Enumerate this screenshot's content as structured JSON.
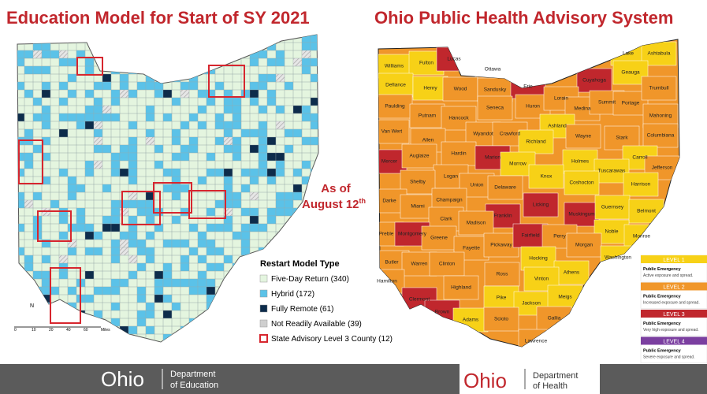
{
  "left": {
    "title": "Education Model for Start of SY 2021",
    "legend": {
      "title": "Restart Model Type",
      "items": [
        {
          "label": "Five-Day Return (340)",
          "color": "#e4f5df",
          "swatch": "fill"
        },
        {
          "label": "Hybrid (172)",
          "color": "#5bc2e8",
          "swatch": "fill"
        },
        {
          "label": "Fully Remote (61)",
          "color": "#0d2c4b",
          "swatch": "fill"
        },
        {
          "label": "Not Readily Available (39)",
          "color": "#cfcfcf",
          "swatch": "fill"
        },
        {
          "label": "State Advisory Level 3 County (12)",
          "color": "#d7262e",
          "swatch": "outline"
        }
      ]
    },
    "scale": [
      "0",
      "10",
      "20",
      "40",
      "60",
      "Miles"
    ],
    "north": "N"
  },
  "as_of": {
    "line1": "As of",
    "date": "August 12",
    "suffix": "th"
  },
  "right": {
    "title": "Ohio Public Health Advisory System",
    "counties": [
      {
        "name": "Williams",
        "color": "#f7d117"
      },
      {
        "name": "Fulton",
        "color": "#f7d117"
      },
      {
        "name": "Lucas",
        "color": "#c0272d"
      },
      {
        "name": "Ottawa",
        "color": "#f0962a"
      },
      {
        "name": "Defiance",
        "color": "#f7d117"
      },
      {
        "name": "Henry",
        "color": "#f7d117"
      },
      {
        "name": "Wood",
        "color": "#f0962a"
      },
      {
        "name": "Sandusky",
        "color": "#f0962a"
      },
      {
        "name": "Erie",
        "color": "#c0272d"
      },
      {
        "name": "Cuyahoga",
        "color": "#c0272d"
      },
      {
        "name": "Lake",
        "color": "#f7d117"
      },
      {
        "name": "Ashtabula",
        "color": "#f7d117"
      },
      {
        "name": "Geauga",
        "color": "#f7d117"
      },
      {
        "name": "Paulding",
        "color": "#f0962a"
      },
      {
        "name": "Putnam",
        "color": "#f0962a"
      },
      {
        "name": "Hancock",
        "color": "#f0962a"
      },
      {
        "name": "Seneca",
        "color": "#f0962a"
      },
      {
        "name": "Huron",
        "color": "#f0962a"
      },
      {
        "name": "Lorain",
        "color": "#f0962a"
      },
      {
        "name": "Medina",
        "color": "#f0962a"
      },
      {
        "name": "Summit",
        "color": "#f0962a"
      },
      {
        "name": "Portage",
        "color": "#f0962a"
      },
      {
        "name": "Trumbull",
        "color": "#f0962a"
      },
      {
        "name": "Mahoning",
        "color": "#f0962a"
      },
      {
        "name": "Van Wert",
        "color": "#f0962a"
      },
      {
        "name": "Allen",
        "color": "#f0962a"
      },
      {
        "name": "Wyandot",
        "color": "#f0962a"
      },
      {
        "name": "Crawford",
        "color": "#f0962a"
      },
      {
        "name": "Ashland",
        "color": "#f7d117"
      },
      {
        "name": "Wayne",
        "color": "#f0962a"
      },
      {
        "name": "Stark",
        "color": "#f0962a"
      },
      {
        "name": "Columbiana",
        "color": "#f0962a"
      },
      {
        "name": "Hardin",
        "color": "#f0962a"
      },
      {
        "name": "Richland",
        "color": "#f7d117"
      },
      {
        "name": "Mercer",
        "color": "#c0272d"
      },
      {
        "name": "Auglaize",
        "color": "#f0962a"
      },
      {
        "name": "Marion",
        "color": "#c0272d"
      },
      {
        "name": "Morrow",
        "color": "#f7d117"
      },
      {
        "name": "Holmes",
        "color": "#f7d117"
      },
      {
        "name": "Carroll",
        "color": "#f7d117"
      },
      {
        "name": "Jefferson",
        "color": "#f0962a"
      },
      {
        "name": "Tuscarawas",
        "color": "#f7d117"
      },
      {
        "name": "Logan",
        "color": "#f0962a"
      },
      {
        "name": "Union",
        "color": "#f0962a"
      },
      {
        "name": "Knox",
        "color": "#f7d117"
      },
      {
        "name": "Coshocton",
        "color": "#f7d117"
      },
      {
        "name": "Harrison",
        "color": "#f7d117"
      },
      {
        "name": "Shelby",
        "color": "#f0962a"
      },
      {
        "name": "Delaware",
        "color": "#f0962a"
      },
      {
        "name": "Darke",
        "color": "#f0962a"
      },
      {
        "name": "Miami",
        "color": "#f0962a"
      },
      {
        "name": "Champaign",
        "color": "#f0962a"
      },
      {
        "name": "Licking",
        "color": "#c0272d"
      },
      {
        "name": "Muskingum",
        "color": "#c0272d"
      },
      {
        "name": "Guernsey",
        "color": "#f7d117"
      },
      {
        "name": "Belmont",
        "color": "#f7d117"
      },
      {
        "name": "Franklin",
        "color": "#c0272d"
      },
      {
        "name": "Clark",
        "color": "#f0962a"
      },
      {
        "name": "Madison",
        "color": "#f0962a"
      },
      {
        "name": "Noble",
        "color": "#f7d117"
      },
      {
        "name": "Monroe",
        "color": "#f7d117"
      },
      {
        "name": "Preble",
        "color": "#f0962a"
      },
      {
        "name": "Montgomery",
        "color": "#c0272d"
      },
      {
        "name": "Greene",
        "color": "#f0962a"
      },
      {
        "name": "Fayette",
        "color": "#f0962a"
      },
      {
        "name": "Pickaway",
        "color": "#f0962a"
      },
      {
        "name": "Fairfield",
        "color": "#c0272d"
      },
      {
        "name": "Perry",
        "color": "#f0962a"
      },
      {
        "name": "Morgan",
        "color": "#f0962a"
      },
      {
        "name": "Washington",
        "color": "#f7d117"
      },
      {
        "name": "Butler",
        "color": "#f0962a"
      },
      {
        "name": "Warren",
        "color": "#f0962a"
      },
      {
        "name": "Clinton",
        "color": "#f0962a"
      },
      {
        "name": "Hocking",
        "color": "#f7d117"
      },
      {
        "name": "Athens",
        "color": "#f7d117"
      },
      {
        "name": "Hamilton",
        "color": "#f0962a"
      },
      {
        "name": "Ross",
        "color": "#f0962a"
      },
      {
        "name": "Vinton",
        "color": "#f7d117"
      },
      {
        "name": "Highland",
        "color": "#f0962a"
      },
      {
        "name": "Clermont",
        "color": "#c0272d"
      },
      {
        "name": "Pike",
        "color": "#f7d117"
      },
      {
        "name": "Jackson",
        "color": "#f7d117"
      },
      {
        "name": "Meigs",
        "color": "#f7d117"
      },
      {
        "name": "Brown",
        "color": "#c0272d"
      },
      {
        "name": "Adams",
        "color": "#f7d117"
      },
      {
        "name": "Scioto",
        "color": "#f0962a"
      },
      {
        "name": "Gallia",
        "color": "#f0962a"
      },
      {
        "name": "Lawrence",
        "color": "#f0962a"
      }
    ],
    "levels": [
      {
        "label": "LEVEL 1",
        "color": "#f7d117",
        "title": "Public Emergency",
        "desc": "Active exposure and spread."
      },
      {
        "label": "LEVEL 2",
        "color": "#f0962a",
        "title": "Public Emergency",
        "desc": "Increased exposure and spread."
      },
      {
        "label": "LEVEL 3",
        "color": "#c0272d",
        "title": "Public Emergency",
        "desc": "Very high exposure and spread."
      },
      {
        "label": "LEVEL 4",
        "color": "#7b3fa0",
        "title": "Public Emergency",
        "desc": "Severe exposure and spread."
      }
    ]
  },
  "footer": {
    "education": {
      "logo": "Ohio",
      "dept": "Department",
      "sub": "of Education"
    },
    "health": {
      "logo": "Ohio",
      "dept": "Department",
      "sub": "of Health"
    }
  }
}
